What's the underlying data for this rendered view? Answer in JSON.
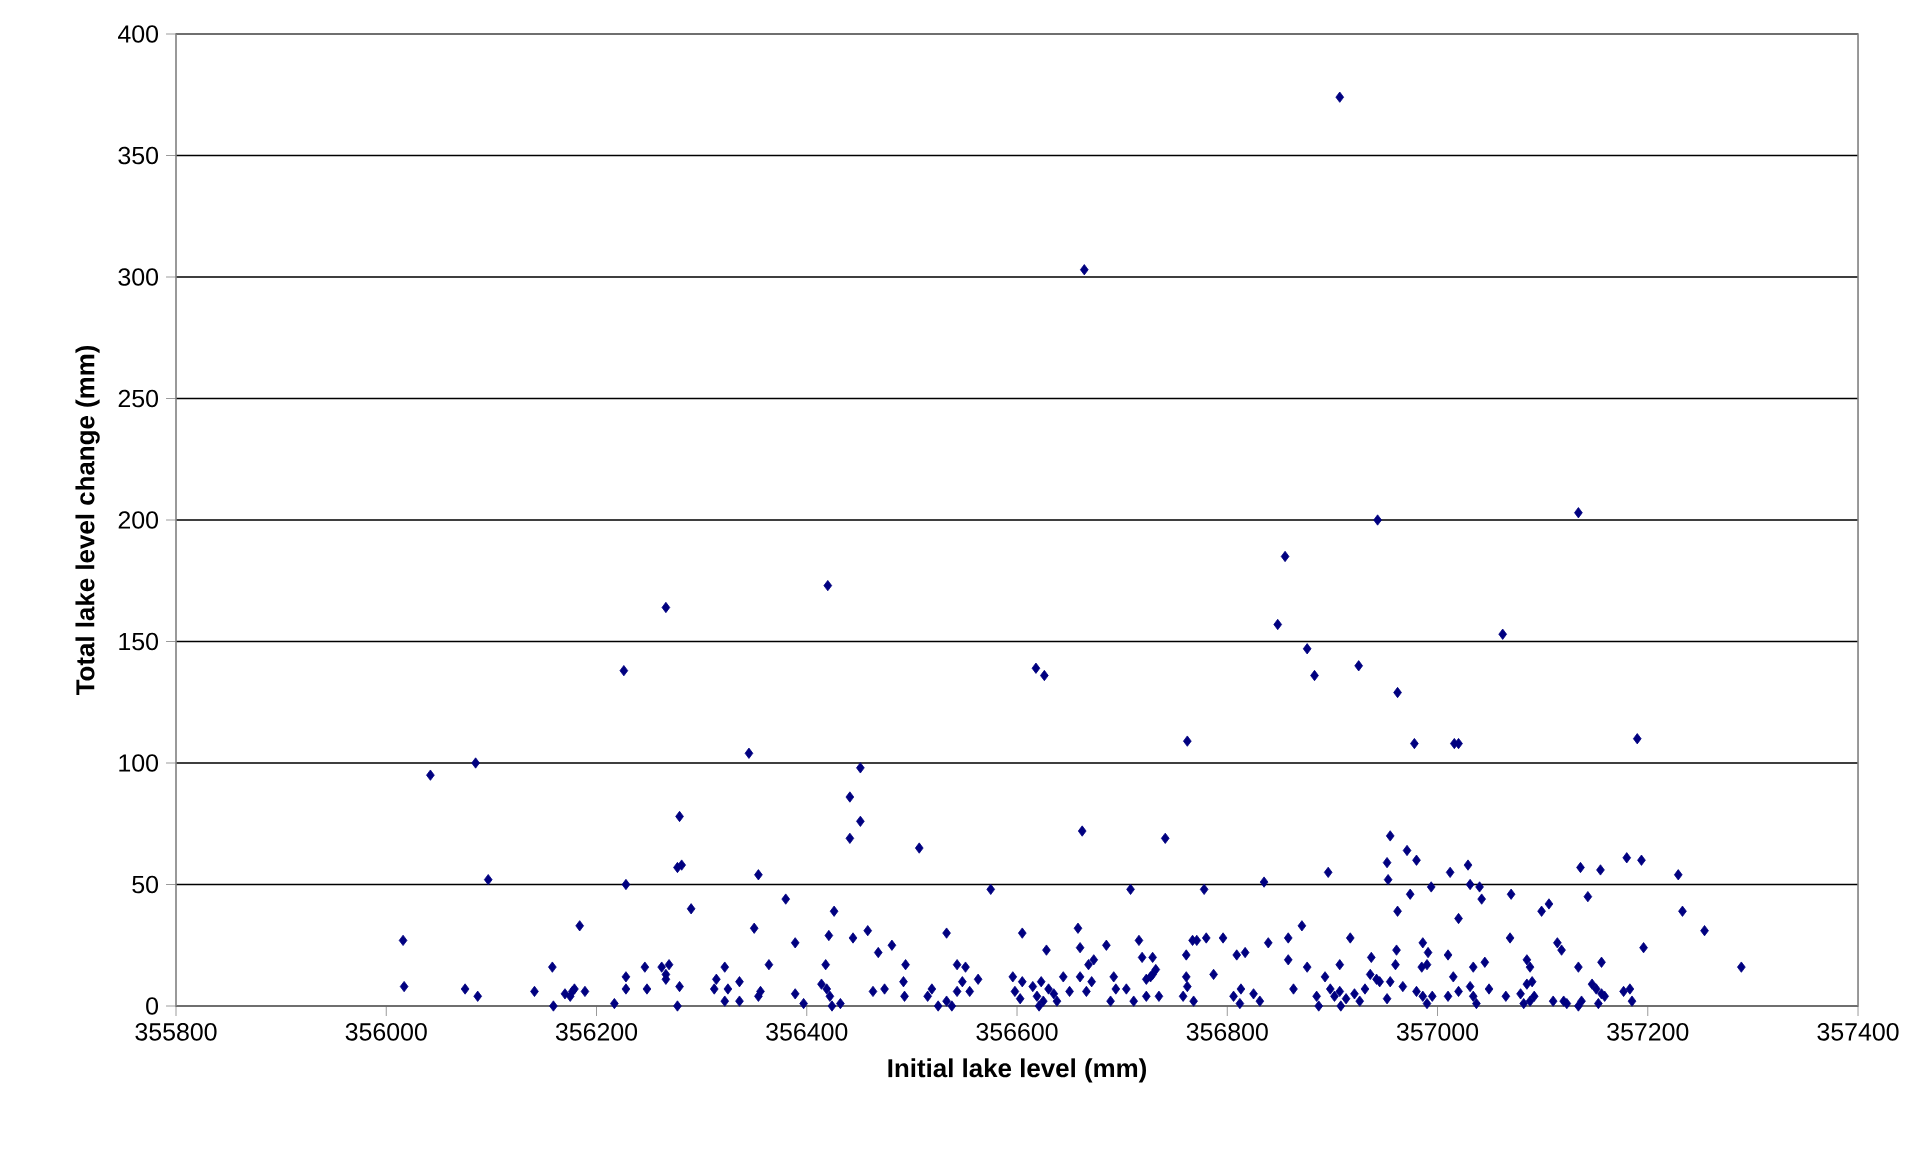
{
  "chart_data": {
    "type": "scatter",
    "xlabel": "Initial lake level (mm)",
    "ylabel": "Total lake level change (mm)",
    "xlim": [
      355800,
      357400
    ],
    "xticks": [
      355800,
      356000,
      356200,
      356400,
      356600,
      356800,
      357000,
      357200,
      357400
    ],
    "ylim": [
      0,
      400
    ],
    "yticks": [
      0,
      50,
      100,
      150,
      200,
      250,
      300,
      350,
      400
    ],
    "grid": "y",
    "marker": "diamond",
    "series": [
      {
        "color": "#000080",
        "x": [
          356042,
          356085,
          356345,
          356451,
          356441,
          356451,
          356441,
          356097,
          356228,
          356279,
          356277,
          356281,
          356354,
          356380,
          356290,
          356426,
          356016,
          356184,
          356350,
          356389,
          356421,
          356444,
          356458,
          356468,
          356158,
          356246,
          356262,
          356269,
          356266,
          356266,
          356228,
          356322,
          356364,
          356418,
          356017,
          356075,
          356087,
          356141,
          356170,
          356177,
          356179,
          356175,
          356189,
          356159,
          356228,
          356248,
          356279,
          356277,
          356217,
          356314,
          356312,
          356322,
          356325,
          356336,
          356336,
          356356,
          356354,
          356389,
          356397,
          356414,
          356419,
          356422,
          356424,
          356432,
          356463,
          356762,
          356507,
          356662,
          356741,
          356575,
          356708,
          356778,
          356835,
          356896,
          356481,
          356494,
          356492,
          356493,
          356474,
          356533,
          356515,
          356519,
          356525,
          356533,
          356538,
          356543,
          356551,
          356548,
          356543,
          356555,
          356563,
          356605,
          356596,
          356598,
          356603,
          356605,
          356615,
          356619,
          356623,
          356625,
          356630,
          356635,
          356638,
          356621,
          356628,
          356644,
          356650,
          356658,
          356660,
          356668,
          356673,
          356671,
          356660,
          356666,
          356685,
          356692,
          356689,
          356694,
          356704,
          356716,
          356719,
          356729,
          356723,
          356727,
          356729,
          356732,
          356711,
          356723,
          356735,
          356761,
          356767,
          356771,
          356780,
          356761,
          356762,
          356758,
          356768,
          356787,
          356796,
          356809,
          356817,
          356806,
          356813,
          356825,
          356831,
          356812,
          356839,
          356858,
          356871,
          356858,
          356876,
          356863,
          356885,
          356887,
          356893,
          356907,
          356917,
          356898,
          356902,
          356907,
          356913,
          356921,
          356926,
          356931,
          356937,
          356942,
          356936,
          356908,
          356978,
          357016,
          357020,
          357190,
          356955,
          356971,
          356952,
          356980,
          356953,
          356974,
          356962,
          356994,
          357012,
          357029,
          357031,
          357040,
          357042,
          357020,
          357070,
          357099,
          357106,
          357136,
          357155,
          357180,
          357194,
          357143,
          357229,
          357233,
          357254,
          357289,
          357069,
          357114,
          357118,
          356961,
          356960,
          356986,
          356991,
          356985,
          356990,
          357010,
          357045,
          357034,
          357015,
          357085,
          357088,
          357134,
          357156,
          357196,
          356945,
          356952,
          356955,
          356967,
          356980,
          356986,
          356995,
          356990,
          357010,
          357020,
          357031,
          357034,
          357037,
          357049,
          357065,
          357079,
          357085,
          357090,
          357092,
          357082,
          357088,
          357110,
          357120,
          357123,
          357134,
          357137,
          357147,
          357151,
          357156,
          357153,
          357159,
          357177,
          357183,
          357185,
          356664,
          356943,
          357134,
          356855,
          356266,
          356420,
          356226,
          356618,
          356626,
          356848,
          356876,
          356883,
          356925,
          356962,
          357062,
          356907
        ],
        "values": [
          95,
          100,
          104,
          98,
          86,
          76,
          69,
          52,
          50,
          78,
          57,
          58,
          54,
          44,
          40,
          39,
          27,
          33,
          32,
          26,
          29,
          28,
          31,
          22,
          16,
          16,
          16,
          17,
          13,
          11,
          12,
          16,
          17,
          17,
          8,
          7,
          4,
          6,
          5,
          6,
          7,
          4,
          6,
          0,
          7,
          7,
          8,
          0,
          1,
          11,
          7,
          2,
          7,
          10,
          2,
          6,
          4,
          5,
          1,
          9,
          7,
          4,
          0,
          1,
          6,
          109,
          65,
          72,
          69,
          48,
          48,
          48,
          51,
          55,
          25,
          17,
          10,
          4,
          7,
          30,
          4,
          7,
          0,
          2,
          0,
          17,
          16,
          10,
          6,
          6,
          11,
          30,
          12,
          6,
          3,
          10,
          8,
          4,
          10,
          2,
          7,
          5,
          2,
          0,
          23,
          12,
          6,
          32,
          24,
          17,
          19,
          10,
          12,
          6,
          25,
          12,
          2,
          7,
          7,
          27,
          20,
          20,
          11,
          12,
          13,
          15,
          2,
          4,
          4,
          21,
          27,
          27,
          28,
          12,
          8,
          4,
          2,
          13,
          28,
          21,
          22,
          4,
          7,
          5,
          2,
          1,
          26,
          28,
          33,
          19,
          16,
          7,
          4,
          0,
          12,
          17,
          28,
          7,
          4,
          6,
          3,
          5,
          2,
          7,
          20,
          11,
          13,
          0,
          108,
          108,
          108,
          110,
          70,
          64,
          59,
          60,
          52,
          46,
          39,
          49,
          55,
          58,
          50,
          49,
          44,
          36,
          46,
          39,
          42,
          57,
          56,
          61,
          60,
          45,
          54,
          39,
          31,
          16,
          28,
          26,
          23,
          23,
          17,
          26,
          22,
          16,
          17,
          21,
          18,
          16,
          12,
          19,
          16,
          16,
          18,
          24,
          10,
          3,
          10,
          8,
          6,
          4,
          4,
          1,
          4,
          6,
          8,
          4,
          1,
          7,
          4,
          5,
          9,
          10,
          4,
          1,
          2,
          2,
          2,
          1,
          0,
          2,
          9,
          7,
          5,
          1,
          4,
          6,
          7,
          2,
          303,
          200,
          203,
          185,
          164,
          173,
          138,
          139,
          136,
          157,
          147,
          136,
          140,
          129,
          153,
          374
        ]
      }
    ]
  }
}
